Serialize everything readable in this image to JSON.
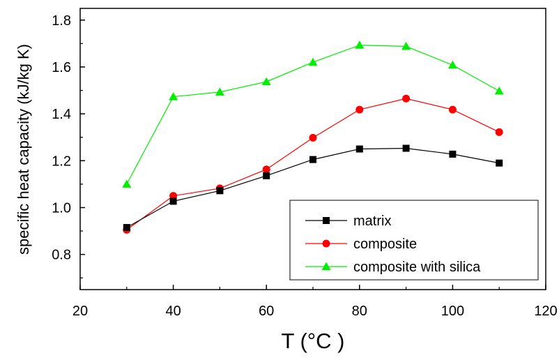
{
  "chart_data": {
    "type": "line",
    "title": "",
    "xlabel": "T (°C )",
    "ylabel": "specific heat capacity (kJ/kg K)",
    "xlim": [
      20,
      120
    ],
    "ylim": [
      0.65,
      1.85
    ],
    "xticks": [
      20,
      40,
      60,
      80,
      100,
      120
    ],
    "yticks": [
      0.8,
      1.0,
      1.2,
      1.4,
      1.6,
      1.8
    ],
    "x_tick_labels": [
      "20",
      "40",
      "60",
      "80",
      "100",
      "120"
    ],
    "y_tick_labels": [
      "0.8",
      "1.0",
      "1.2",
      "1.4",
      "1.6",
      "1.8"
    ],
    "grid": false,
    "legend_position": "bottom-right",
    "x": [
      30,
      40,
      50,
      60,
      70,
      80,
      90,
      100,
      110
    ],
    "series": [
      {
        "name": "matrix",
        "color": "#000000",
        "marker": "square",
        "values": [
          0.915,
          1.027,
          1.072,
          1.136,
          1.205,
          1.25,
          1.253,
          1.228,
          1.19
        ]
      },
      {
        "name": "composite",
        "color": "#ff0000",
        "marker": "circle",
        "values": [
          0.905,
          1.05,
          1.082,
          1.163,
          1.298,
          1.418,
          1.465,
          1.418,
          1.322
        ]
      },
      {
        "name": "composite with silica",
        "color": "#00ee00",
        "marker": "triangle",
        "values": [
          1.1,
          1.473,
          1.493,
          1.537,
          1.62,
          1.693,
          1.688,
          1.608,
          1.497
        ]
      }
    ]
  }
}
